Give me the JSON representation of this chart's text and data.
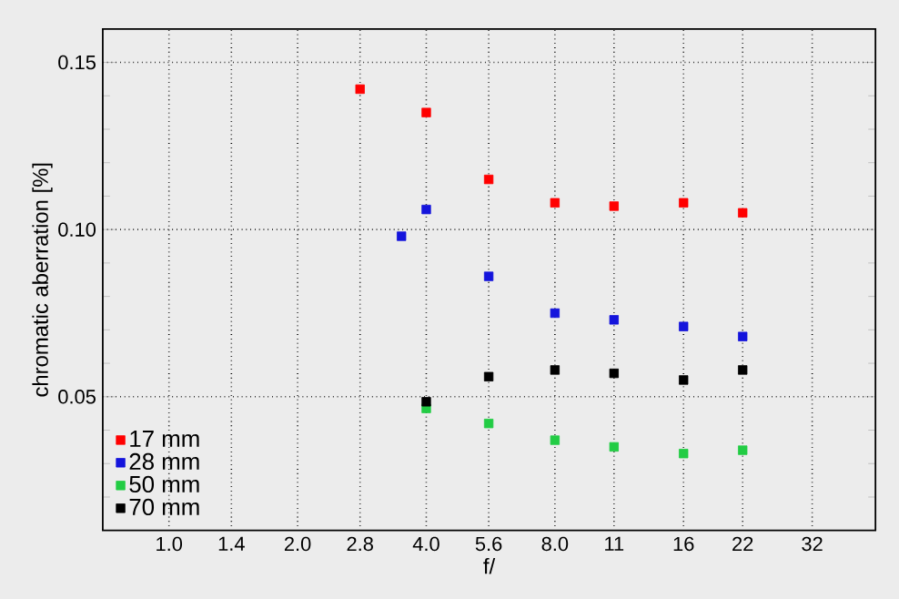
{
  "chart_data": {
    "type": "scatter",
    "xlabel": "f/",
    "ylabel": "chromatic aberration [%]",
    "log": "x",
    "xlim": [
      0.7,
      45
    ],
    "ylim": [
      0.01,
      0.16
    ],
    "xticks": [
      {
        "value": 1,
        "label": "1.0"
      },
      {
        "value": 1.4,
        "label": "1.4"
      },
      {
        "value": 2,
        "label": "2.0"
      },
      {
        "value": 2.8,
        "label": "2.8"
      },
      {
        "value": 4,
        "label": "4.0"
      },
      {
        "value": 5.6,
        "label": "5.6"
      },
      {
        "value": 8,
        "label": "8.0"
      },
      {
        "value": 11,
        "label": "11"
      },
      {
        "value": 16,
        "label": "16"
      },
      {
        "value": 22,
        "label": "22"
      },
      {
        "value": 32,
        "label": "32"
      }
    ],
    "yticks": [
      {
        "value": 0.02,
        "label": null
      },
      {
        "value": 0.03,
        "label": null
      },
      {
        "value": 0.04,
        "label": null
      },
      0.05,
      {
        "value": 0.06,
        "label": null
      },
      {
        "value": 0.07,
        "label": null
      },
      {
        "value": 0.08,
        "label": null
      },
      {
        "value": 0.09,
        "label": null
      },
      {
        "value": 0.1,
        "label": "0.10"
      },
      {
        "value": 0.11,
        "label": null
      },
      {
        "value": 0.12,
        "label": null
      },
      {
        "value": 0.13,
        "label": null
      },
      {
        "value": 0.14,
        "label": null
      },
      0.15
    ],
    "grid": true,
    "legend": "bottom left",
    "marker": "square",
    "series": [
      {
        "name": "17 mm",
        "color": "#ff0000",
        "x": [
          2.8,
          4,
          5.6,
          8,
          11,
          16,
          22
        ],
        "values": [
          0.142,
          0.135,
          0.115,
          0.108,
          0.107,
          0.108,
          0.105
        ]
      },
      {
        "name": "28 mm",
        "color": "#1414dc",
        "x": [
          3.5,
          4,
          5.6,
          8,
          11,
          16,
          22
        ],
        "values": [
          0.098,
          0.106,
          0.086,
          0.075,
          0.073,
          0.071,
          0.068
        ]
      },
      {
        "name": "50 mm",
        "color": "#22cc44",
        "x": [
          4,
          5.6,
          8,
          11,
          16,
          22
        ],
        "values": [
          0.0465,
          0.042,
          0.037,
          0.035,
          0.033,
          0.034
        ]
      },
      {
        "name": "70 mm",
        "color": "#000000",
        "x": [
          4,
          5.6,
          8,
          11,
          16,
          22
        ],
        "values": [
          0.0485,
          0.056,
          0.058,
          0.057,
          0.055,
          0.058
        ]
      }
    ]
  }
}
